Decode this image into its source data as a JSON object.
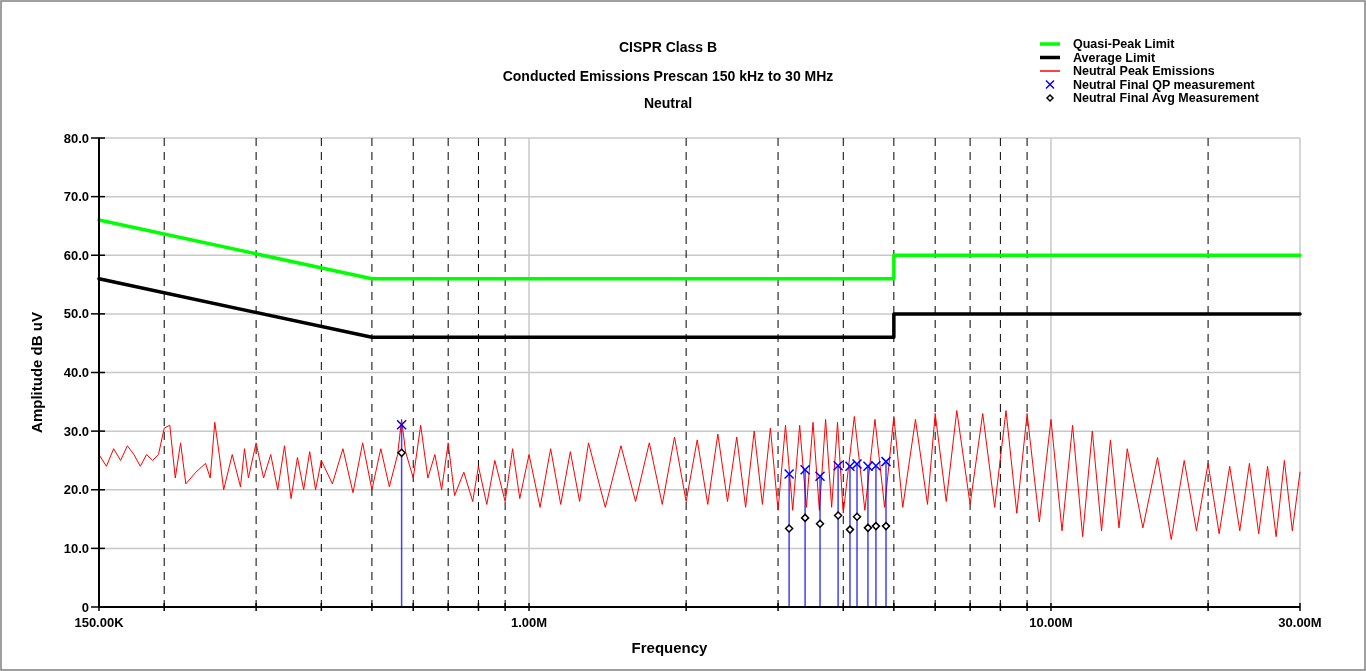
{
  "chart_data": {
    "type": "line",
    "title": "CISPR Class B",
    "subtitle": "Conducted Emissions Prescan 150 kHz to 30 MHz",
    "annotations": [
      "Neutral"
    ],
    "xlabel": "Frequency",
    "ylabel": "Amplitude dB uV",
    "log": "x",
    "grid": true,
    "legend": "top right",
    "xlim": [
      150000,
      30000000
    ],
    "ylim": [
      0,
      80
    ],
    "xticks": [
      {
        "value": 150000,
        "label": "150.00K"
      },
      {
        "value": 200000,
        "label": null
      },
      {
        "value": 300000,
        "label": null
      },
      {
        "value": 400000,
        "label": null
      },
      {
        "value": 500000,
        "label": null
      },
      {
        "value": 600000,
        "label": null
      },
      {
        "value": 700000,
        "label": null
      },
      {
        "value": 800000,
        "label": null
      },
      {
        "value": 900000,
        "label": null
      },
      {
        "value": 1000000,
        "label": "1.00M"
      },
      {
        "value": 2000000,
        "label": null
      },
      {
        "value": 3000000,
        "label": null
      },
      {
        "value": 4000000,
        "label": null
      },
      {
        "value": 5000000,
        "label": null
      },
      {
        "value": 6000000,
        "label": null
      },
      {
        "value": 7000000,
        "label": null
      },
      {
        "value": 8000000,
        "label": null
      },
      {
        "value": 9000000,
        "label": null
      },
      {
        "value": 10000000,
        "label": "10.00M"
      },
      {
        "value": 20000000,
        "label": null
      },
      {
        "value": 30000000,
        "label": "30.00M"
      }
    ],
    "yticks": [
      0,
      {
        "value": 10,
        "label": "10.0"
      },
      {
        "value": 20,
        "label": "20.0"
      },
      {
        "value": 30,
        "label": "30.0"
      },
      {
        "value": 40,
        "label": "40.0"
      },
      {
        "value": 50,
        "label": "50.0"
      },
      {
        "value": 60,
        "label": "60.0"
      },
      {
        "value": 70,
        "label": "70.0"
      },
      {
        "value": 80,
        "label": "80.0"
      }
    ],
    "series": [
      {
        "name": "Quasi-Peak Limit",
        "color": "#00ff00",
        "x": [
          150000,
          500000,
          5000000,
          5000000,
          30000000
        ],
        "values": [
          66,
          56,
          56,
          60,
          60
        ]
      },
      {
        "name": "Average Limit",
        "color": "#000000",
        "x": [
          150000,
          500000,
          5000000,
          5000000,
          30000000
        ],
        "values": [
          56,
          46,
          46,
          50,
          50
        ]
      },
      {
        "name": "Neutral Peak Emissions",
        "color": "#ff0000",
        "x": [
          150000,
          155000,
          160000,
          165000,
          170000,
          175000,
          180000,
          185000,
          190000,
          195000,
          200000,
          205000,
          210000,
          215000,
          220000,
          230000,
          240000,
          245000,
          250000,
          255000,
          260000,
          270000,
          280000,
          285000,
          290000,
          300000,
          310000,
          320000,
          330000,
          340000,
          350000,
          360000,
          370000,
          380000,
          390000,
          400000,
          420000,
          440000,
          460000,
          480000,
          500000,
          520000,
          540000,
          560000,
          570000,
          580000,
          600000,
          620000,
          640000,
          660000,
          680000,
          700000,
          720000,
          750000,
          780000,
          800000,
          830000,
          860000,
          900000,
          930000,
          960000,
          1000000,
          1050000,
          1100000,
          1150000,
          1200000,
          1250000,
          1300000,
          1400000,
          1500000,
          1600000,
          1700000,
          1800000,
          1900000,
          2000000,
          2100000,
          2200000,
          2300000,
          2400000,
          2500000,
          2600000,
          2700000,
          2800000,
          2900000,
          3000000,
          3100000,
          3200000,
          3300000,
          3400000,
          3500000,
          3600000,
          3700000,
          3800000,
          3900000,
          4000000,
          4200000,
          4400000,
          4600000,
          4800000,
          5000000,
          5200000,
          5500000,
          5800000,
          6000000,
          6300000,
          6600000,
          7000000,
          7400000,
          7800000,
          8200000,
          8600000,
          9000000,
          9500000,
          10000000,
          10500000,
          11000000,
          11500000,
          12000000,
          12500000,
          13000000,
          13500000,
          14000000,
          15000000,
          16000000,
          17000000,
          18000000,
          19000000,
          20000000,
          21000000,
          22000000,
          23000000,
          24000000,
          25000000,
          26000000,
          27000000,
          28000000,
          29000000,
          30000000
        ],
        "values": [
          26,
          24,
          27,
          25,
          27.5,
          26,
          24,
          26,
          25,
          26,
          30.5,
          31,
          22,
          28,
          21,
          23,
          24.5,
          22,
          31.5,
          26,
          20,
          26,
          20.5,
          27,
          22,
          28,
          22,
          26,
          20,
          27.5,
          18.5,
          25.5,
          20,
          26.5,
          20,
          25,
          21,
          27,
          19.5,
          28,
          20,
          27,
          20.5,
          26,
          32,
          26.5,
          22,
          31,
          22,
          26,
          20,
          28,
          19,
          23,
          18,
          24,
          17.5,
          25,
          18,
          27,
          18.5,
          26,
          17,
          27,
          17.5,
          26.5,
          18,
          28,
          17,
          27.5,
          18,
          28,
          17.5,
          29,
          18,
          28.5,
          17.5,
          29.5,
          18,
          29,
          17,
          30,
          17.5,
          30.5,
          16.5,
          31,
          16.5,
          31,
          17,
          31.5,
          16.5,
          32,
          17,
          31.5,
          16,
          32.5,
          16.5,
          32,
          17,
          32.5,
          17,
          32,
          17.5,
          33,
          18,
          33.5,
          17.5,
          33,
          17,
          33.5,
          16,
          33,
          14.5,
          32,
          13,
          31,
          12,
          30,
          13,
          28.5,
          13.5,
          27,
          13.5,
          25.5,
          11.5,
          25,
          13,
          24.5,
          12.5,
          24,
          13,
          24.5,
          12.5,
          24,
          12,
          25,
          13,
          23
        ]
      },
      {
        "name": "Neutral Final QP measurement",
        "type": "lollipop",
        "marker": "cross",
        "color": "#0000ff",
        "x": [
          570000,
          3150000,
          3380000,
          3610000,
          3910000,
          4120000,
          4250000,
          4460000,
          4620000,
          4830000
        ],
        "values": [
          31.1,
          22.7,
          23.4,
          22.3,
          24.1,
          24.0,
          24.4,
          24.0,
          24.1,
          24.8
        ]
      },
      {
        "name": "Neutral Final Avg Measurement",
        "type": "scatter",
        "marker": "diamond",
        "color": "#000000",
        "x": [
          570000,
          3150000,
          3380000,
          3610000,
          3910000,
          4120000,
          4250000,
          4460000,
          4620000,
          4830000
        ],
        "values": [
          26.3,
          13.4,
          15.2,
          14.2,
          15.6,
          13.2,
          15.4,
          13.5,
          13.8,
          13.8
        ]
      }
    ]
  }
}
